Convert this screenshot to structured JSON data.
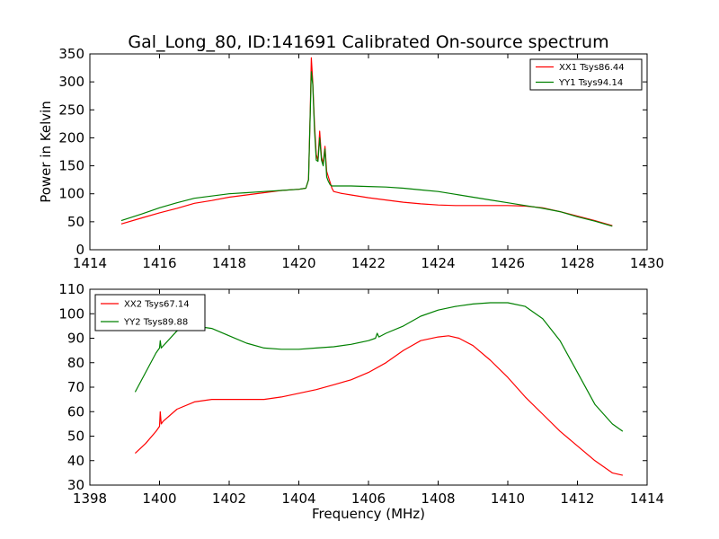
{
  "title": "Gal_Long_80, ID:141691 Calibrated On-source spectrum",
  "colors": {
    "red": "#ff0000",
    "green": "#008000"
  },
  "chart_data": [
    {
      "type": "line",
      "title": "Gal_Long_80, ID:141691 Calibrated On-source spectrum",
      "xlabel": "",
      "ylabel": "Power in Kelvin",
      "xlim": [
        1414,
        1430
      ],
      "ylim": [
        0,
        350
      ],
      "xticks": [
        1414,
        1416,
        1418,
        1420,
        1422,
        1424,
        1426,
        1428,
        1430
      ],
      "yticks": [
        0,
        50,
        100,
        150,
        200,
        250,
        300,
        350
      ],
      "legend_position": "top-right",
      "series": [
        {
          "name": "XX1 Tsys86.44",
          "color": "#ff0000",
          "x": [
            1414.9,
            1415.5,
            1416,
            1416.5,
            1417,
            1417.5,
            1418,
            1418.5,
            1419,
            1419.5,
            1420,
            1420.2,
            1420.28,
            1420.33,
            1420.36,
            1420.4,
            1420.45,
            1420.5,
            1420.55,
            1420.6,
            1420.65,
            1420.7,
            1420.75,
            1420.8,
            1420.85,
            1420.9,
            1420.95,
            1421,
            1421.2,
            1421.5,
            1422,
            1422.5,
            1423,
            1423.5,
            1424,
            1424.5,
            1425,
            1425.5,
            1426,
            1426.5,
            1427,
            1427.5,
            1428,
            1428.5,
            1429
          ],
          "y": [
            46,
            57,
            66,
            74,
            83,
            88,
            94,
            98,
            102,
            106,
            108,
            110,
            125,
            255,
            343,
            300,
            225,
            170,
            160,
            212,
            165,
            155,
            185,
            140,
            130,
            120,
            110,
            104,
            101,
            98,
            93,
            89,
            85,
            82,
            80,
            79,
            79,
            79,
            79,
            78,
            75,
            68,
            60,
            52,
            43
          ]
        },
        {
          "name": "YY1 Tsys94.14",
          "color": "#008000",
          "x": [
            1414.9,
            1415.5,
            1416,
            1416.5,
            1417,
            1417.5,
            1418,
            1418.5,
            1419,
            1419.5,
            1420,
            1420.2,
            1420.28,
            1420.33,
            1420.36,
            1420.4,
            1420.45,
            1420.5,
            1420.55,
            1420.6,
            1420.65,
            1420.7,
            1420.75,
            1420.8,
            1420.85,
            1420.9,
            1420.95,
            1421,
            1421.5,
            1422,
            1422.5,
            1423,
            1423.5,
            1424,
            1424.5,
            1425,
            1425.5,
            1426,
            1426.5,
            1427,
            1427.5,
            1428,
            1428.5,
            1429
          ],
          "y": [
            52,
            64,
            75,
            84,
            92,
            96,
            100,
            102,
            104,
            106,
            108,
            110,
            125,
            250,
            318,
            295,
            215,
            160,
            158,
            200,
            160,
            150,
            180,
            130,
            122,
            116,
            114,
            114,
            114,
            113,
            112,
            110,
            107,
            104,
            99,
            94,
            89,
            84,
            79,
            74,
            68,
            59,
            51,
            42
          ]
        }
      ]
    },
    {
      "type": "line",
      "title": "",
      "xlabel": "Frequency (MHz)",
      "ylabel": "",
      "xlim": [
        1398,
        1414
      ],
      "ylim": [
        30,
        110
      ],
      "xticks": [
        1398,
        1400,
        1402,
        1404,
        1406,
        1408,
        1410,
        1412,
        1414
      ],
      "yticks": [
        30,
        40,
        50,
        60,
        70,
        80,
        90,
        100,
        110
      ],
      "legend_position": "top-left",
      "series": [
        {
          "name": "XX2 Tsys67.14",
          "color": "#ff0000",
          "x": [
            1399.3,
            1399.6,
            1399.9,
            1400.0,
            1400.02,
            1400.05,
            1400.1,
            1400.5,
            1401,
            1401.5,
            1402,
            1402.5,
            1403,
            1403.5,
            1404,
            1404.5,
            1405,
            1405.5,
            1406,
            1406.5,
            1407,
            1407.5,
            1408,
            1408.3,
            1408.6,
            1409,
            1409.5,
            1410,
            1410.5,
            1411,
            1411.5,
            1412,
            1412.5,
            1413,
            1413.3
          ],
          "y": [
            43,
            47,
            52,
            54,
            60,
            55,
            56,
            61,
            64,
            65,
            65,
            65,
            65,
            66,
            67.5,
            69,
            71,
            73,
            76,
            80,
            85,
            89,
            90.5,
            91,
            90,
            87,
            81,
            74,
            66,
            59,
            52,
            46,
            40,
            35,
            34
          ]
        },
        {
          "name": "YY2 Tsys89.88",
          "color": "#008000",
          "x": [
            1399.3,
            1399.6,
            1399.9,
            1400.0,
            1400.02,
            1400.05,
            1400.5,
            1401,
            1401.5,
            1402,
            1402.5,
            1403,
            1403.5,
            1404,
            1404.5,
            1405,
            1405.5,
            1406,
            1406.2,
            1406.25,
            1406.3,
            1406.5,
            1407,
            1407.5,
            1408,
            1408.5,
            1409,
            1409.5,
            1410,
            1410.5,
            1411,
            1411.5,
            1412,
            1412.5,
            1413,
            1413.3
          ],
          "y": [
            68,
            76,
            84,
            86,
            89,
            86,
            93,
            95,
            94,
            91,
            88,
            86,
            85.5,
            85.5,
            86,
            86.5,
            87.5,
            89,
            90,
            92,
            90.5,
            92,
            95,
            99,
            101.5,
            103,
            104,
            104.5,
            104.5,
            103,
            98,
            89,
            76,
            63,
            55,
            52
          ]
        }
      ]
    }
  ]
}
